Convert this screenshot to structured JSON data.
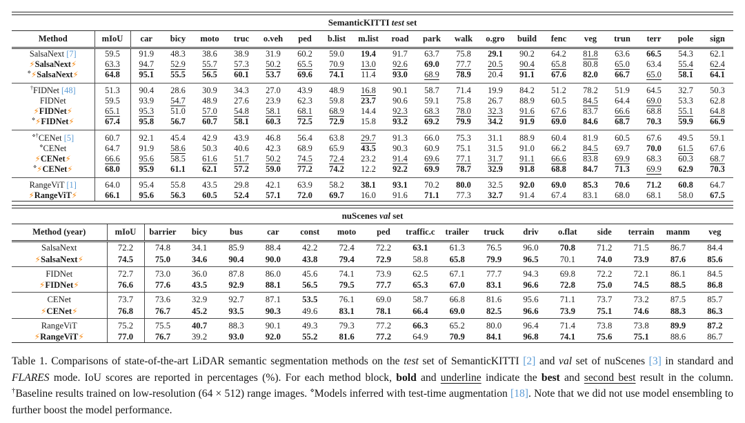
{
  "colors": {
    "citation": "#5b9bd5",
    "lightning": "#f5870f",
    "rule": "#2b2b2b"
  },
  "tables": [
    {
      "id": "semantickitti-test",
      "title": [
        {
          "t": "SemanticKITTI ",
          "s": "b"
        },
        {
          "t": "test",
          "s": "bi"
        },
        {
          "t": " set",
          "s": "b"
        }
      ],
      "columns": [
        "Method",
        "mIoU",
        "car",
        "bicy",
        "moto",
        "truc",
        "o.veh",
        "ped",
        "b.list",
        "m.list",
        "road",
        "park",
        "walk",
        "o.gro",
        "build",
        "fenc",
        "veg",
        "trun",
        "terr",
        "pole",
        "sign"
      ],
      "method_col_width": 120,
      "miou_col_width": 52,
      "blocks": [
        {
          "rows": [
            {
              "m": {
                "pre": "",
                "name": "SalsaNext",
                "cite": "[7]",
                "fl": false
              },
              "v": [
                "59.5",
                "91.9",
                "48.3",
                "38.6",
                "38.9",
                "31.9",
                "60.2",
                "59.0",
                "19.4*",
                "91.7",
                "63.7",
                "75.8",
                "29.1*",
                "90.2",
                "64.2",
                "81.8_",
                "63.6",
                "66.5*",
                "54.3",
                "62.1"
              ]
            },
            {
              "m": {
                "pre": "",
                "name": "SalsaNext",
                "cite": "",
                "fl": true
              },
              "v": [
                "63.3_",
                "94.7_",
                "52.9_",
                "55.7_",
                "57.3_",
                "50.2_",
                "65.5_",
                "70.9_",
                "13.0_",
                "92.6_",
                "69.0*",
                "77.7_",
                "20.5_",
                "90.4_",
                "65.8_",
                "80.8",
                "65.0_",
                "63.4",
                "55.4_",
                "62.4_"
              ]
            },
            {
              "m": {
                "pre": "⋄",
                "name": "SalsaNext",
                "cite": "",
                "fl": true
              },
              "v": [
                "64.8*",
                "95.1*",
                "55.5*",
                "56.5*",
                "60.1*",
                "53.7*",
                "69.6*",
                "74.1*",
                "11.4",
                "93.0*",
                "68.9_",
                "78.9*",
                "20.4",
                "91.1*",
                "67.6*",
                "82.0*",
                "66.7*",
                "65.0_",
                "58.1*",
                "64.1*"
              ]
            }
          ]
        },
        {
          "rows": [
            {
              "m": {
                "pre": "†",
                "name": "FIDNet",
                "cite": "[48]",
                "fl": false
              },
              "v": [
                "51.3",
                "90.4",
                "28.6",
                "30.9",
                "34.3",
                "27.0",
                "43.9",
                "48.9",
                "16.8_",
                "90.1",
                "58.7",
                "71.4",
                "19.9",
                "84.2",
                "51.2",
                "78.2",
                "51.9",
                "64.5",
                "32.7",
                "50.3"
              ]
            },
            {
              "m": {
                "pre": "",
                "name": "FIDNet",
                "cite": "",
                "fl": false
              },
              "v": [
                "59.5",
                "93.9",
                "54.7_",
                "48.9",
                "27.6",
                "23.9",
                "62.3",
                "59.8",
                "23.7*",
                "90.6",
                "59.1",
                "75.8",
                "26.7",
                "88.9",
                "60.5",
                "84.5_",
                "64.4",
                "69.0_",
                "53.3",
                "62.8"
              ]
            },
            {
              "m": {
                "pre": "",
                "name": "FIDNet",
                "cite": "",
                "fl": true
              },
              "v": [
                "65.1_",
                "95.3_",
                "51.0",
                "57.0_",
                "54.8_",
                "58.1_",
                "68.1_",
                "68.9_",
                "14.4",
                "92.3_",
                "68.3_",
                "78.0_",
                "32.3_",
                "91.6_",
                "67.6_",
                "83.7",
                "66.6_",
                "68.8",
                "55.1_",
                "64.8_"
              ]
            },
            {
              "m": {
                "pre": "⋄",
                "name": "FIDNet",
                "cite": "",
                "fl": true
              },
              "v": [
                "67.4*",
                "95.8*",
                "56.7*",
                "60.7*",
                "58.1*",
                "60.3*",
                "72.5*",
                "72.9*",
                "15.8",
                "93.2*",
                "69.2*",
                "79.9*",
                "34.2*",
                "91.9*",
                "69.0*",
                "84.6*",
                "68.7*",
                "70.3*",
                "59.9*",
                "66.9*"
              ]
            }
          ]
        },
        {
          "rows": [
            {
              "m": {
                "pre": "⋄†",
                "name": "CENet",
                "cite": "[5]",
                "fl": false
              },
              "v": [
                "60.7",
                "92.1",
                "45.4",
                "42.9",
                "43.9",
                "46.8",
                "56.4",
                "63.8",
                "29.7_",
                "91.3",
                "66.0",
                "75.3",
                "31.1",
                "88.9",
                "60.4",
                "81.9",
                "60.5",
                "67.6",
                "49.5",
                "59.1"
              ]
            },
            {
              "m": {
                "pre": "⋄",
                "name": "CENet",
                "cite": "",
                "fl": false
              },
              "v": [
                "64.7",
                "91.9",
                "58.6_",
                "50.3",
                "40.6",
                "42.3",
                "68.9",
                "65.9",
                "43.5*",
                "90.3",
                "60.9",
                "75.1",
                "31.5",
                "91.0",
                "66.2",
                "84.5_",
                "69.7",
                "70.0*",
                "61.5_",
                "67.6"
              ]
            },
            {
              "m": {
                "pre": "",
                "name": "CENet",
                "cite": "",
                "fl": true
              },
              "v": [
                "66.6_",
                "95.6_",
                "58.5",
                "61.6_",
                "51.7_",
                "50.2_",
                "74.5_",
                "72.4_",
                "23.2",
                "91.4_",
                "69.6_",
                "77.1_",
                "31.7_",
                "91.1_",
                "66.6_",
                "83.8",
                "69.9_",
                "68.3",
                "60.3",
                "68.7_"
              ]
            },
            {
              "m": {
                "pre": "⋄",
                "name": "CENet",
                "cite": "",
                "fl": true
              },
              "v": [
                "68.0*",
                "95.9*",
                "61.1*",
                "62.1*",
                "57.2*",
                "59.0*",
                "77.2*",
                "74.2*",
                "12.2",
                "92.2*",
                "69.9*",
                "78.7*",
                "32.9*",
                "91.8*",
                "68.8*",
                "84.7*",
                "71.3*",
                "69.9_",
                "62.9*",
                "70.3*"
              ]
            }
          ]
        },
        {
          "rows": [
            {
              "m": {
                "pre": "",
                "name": "RangeViT",
                "cite": "[1]",
                "fl": false
              },
              "v": [
                "64.0",
                "95.4",
                "55.8",
                "43.5",
                "29.8",
                "42.1",
                "63.9",
                "58.2",
                "38.1*",
                "93.1*",
                "70.2",
                "80.0*",
                "32.5",
                "92.0*",
                "69.0*",
                "85.3*",
                "70.6*",
                "71.2*",
                "60.8*",
                "64.7"
              ]
            },
            {
              "m": {
                "pre": "",
                "name": "RangeViT",
                "cite": "",
                "fl": true
              },
              "v": [
                "66.1*",
                "95.6*",
                "56.3*",
                "60.5*",
                "52.4*",
                "57.1*",
                "72.0*",
                "69.7*",
                "16.0",
                "91.6",
                "71.1*",
                "77.3",
                "32.7*",
                "91.4",
                "67.4",
                "83.1",
                "68.0",
                "68.1",
                "58.0",
                "67.5*"
              ]
            }
          ]
        }
      ]
    },
    {
      "id": "nuscenes-val",
      "title": [
        {
          "t": "nuScenes ",
          "s": "b"
        },
        {
          "t": "val",
          "s": "bi"
        },
        {
          "t": " set",
          "s": "b"
        }
      ],
      "columns": [
        "Method (year)",
        "mIoU",
        "barrier",
        "bicy",
        "bus",
        "car",
        "const",
        "moto",
        "ped",
        "traffic.c",
        "trailer",
        "truck",
        "driv",
        "o.flat",
        "side",
        "terrain",
        "manm",
        "veg"
      ],
      "method_col_width": 138,
      "miou_col_width": 54,
      "blocks": [
        {
          "rows": [
            {
              "m": {
                "pre": "",
                "name": "SalsaNext",
                "cite": "",
                "fl": false
              },
              "v": [
                "72.2",
                "74.8",
                "34.1",
                "85.9",
                "88.4",
                "42.2",
                "72.4",
                "72.2",
                "63.1*",
                "61.3",
                "76.5",
                "96.0",
                "70.8*",
                "71.2",
                "71.5",
                "86.7",
                "84.4"
              ]
            },
            {
              "m": {
                "pre": "",
                "name": "SalsaNext",
                "cite": "",
                "fl": true
              },
              "v": [
                "74.5*",
                "75.0*",
                "34.6*",
                "90.4*",
                "90.0*",
                "43.8*",
                "79.4*",
                "72.9*",
                "58.8",
                "65.8*",
                "79.9*",
                "96.5*",
                "70.1",
                "74.0*",
                "73.9*",
                "87.6*",
                "85.6*"
              ]
            }
          ]
        },
        {
          "rows": [
            {
              "m": {
                "pre": "",
                "name": "FIDNet",
                "cite": "",
                "fl": false
              },
              "v": [
                "72.7",
                "73.0",
                "36.0",
                "87.8",
                "86.0",
                "45.6",
                "74.1",
                "73.9",
                "62.5",
                "67.1",
                "77.7",
                "94.3",
                "69.8",
                "72.2",
                "72.1",
                "86.1",
                "84.5"
              ]
            },
            {
              "m": {
                "pre": "",
                "name": "FIDNet",
                "cite": "",
                "fl": true
              },
              "v": [
                "76.6*",
                "77.6*",
                "43.5*",
                "92.9*",
                "88.1*",
                "56.5*",
                "79.5*",
                "77.7*",
                "65.3*",
                "67.0*",
                "83.1*",
                "96.6*",
                "72.8*",
                "75.0*",
                "74.5*",
                "88.5*",
                "86.8*"
              ]
            }
          ]
        },
        {
          "rows": [
            {
              "m": {
                "pre": "",
                "name": "CENet",
                "cite": "",
                "fl": false
              },
              "v": [
                "73.7",
                "73.6",
                "32.9",
                "92.7",
                "87.1",
                "53.5*",
                "76.1",
                "69.0",
                "58.7",
                "66.8",
                "81.6",
                "95.6",
                "71.1",
                "73.7",
                "73.2",
                "87.5",
                "85.7"
              ]
            },
            {
              "m": {
                "pre": "",
                "name": "CENet",
                "cite": "",
                "fl": true
              },
              "v": [
                "76.8*",
                "76.7*",
                "45.2*",
                "93.5*",
                "90.3*",
                "49.6",
                "83.1*",
                "78.1*",
                "66.4*",
                "69.0*",
                "82.5*",
                "96.6*",
                "73.9*",
                "75.1*",
                "74.6*",
                "88.3*",
                "86.3*"
              ]
            }
          ]
        },
        {
          "rows": [
            {
              "m": {
                "pre": "",
                "name": "RangeViT",
                "cite": "",
                "fl": false
              },
              "v": [
                "75.2",
                "75.5",
                "40.7*",
                "88.3",
                "90.1",
                "49.3",
                "79.3",
                "77.2",
                "66.3*",
                "65.2",
                "80.0",
                "96.4",
                "71.4",
                "73.8",
                "73.8",
                "89.9*",
                "87.2*"
              ]
            },
            {
              "m": {
                "pre": "",
                "name": "RangeViT",
                "cite": "",
                "fl": true
              },
              "v": [
                "77.0*",
                "76.7*",
                "39.2",
                "93.0*",
                "92.0*",
                "55.2*",
                "81.6*",
                "77.2*",
                "64.9",
                "70.9*",
                "84.1*",
                "96.8*",
                "74.1*",
                "75.6*",
                "75.1*",
                "88.6",
                "86.7"
              ]
            }
          ]
        }
      ]
    }
  ],
  "caption": [
    {
      "t": "Table 1.  Comparisons of state-of-the-art LiDAR semantic segmentation methods on the ",
      "s": "r"
    },
    {
      "t": "test",
      "s": "i"
    },
    {
      "t": " set of SemanticKITTI ",
      "s": "r"
    },
    {
      "t": "[2]",
      "s": "c"
    },
    {
      "t": " and ",
      "s": "r"
    },
    {
      "t": "val",
      "s": "i"
    },
    {
      "t": " set of nuScenes ",
      "s": "r"
    },
    {
      "t": "[3]",
      "s": "c"
    },
    {
      "t": " in standard and ",
      "s": "r"
    },
    {
      "t": "FLARES",
      "s": "i"
    },
    {
      "t": " mode.  IoU scores are reported in percentages (%).  For each method block, ",
      "s": "r"
    },
    {
      "t": "bold",
      "s": "b"
    },
    {
      "t": " and ",
      "s": "r"
    },
    {
      "t": "underline",
      "s": "u"
    },
    {
      "t": " indicate the ",
      "s": "r"
    },
    {
      "t": "best",
      "s": "b"
    },
    {
      "t": " and ",
      "s": "r"
    },
    {
      "t": "second best",
      "s": "u"
    },
    {
      "t": " result in the column. ",
      "s": "r"
    },
    {
      "t": "†",
      "s": "sup"
    },
    {
      "t": "Baseline results trained on low-resolution (64 × 512) range images. ",
      "s": "r"
    },
    {
      "t": "⋄",
      "s": "sup"
    },
    {
      "t": "Models inferred with test-time augmentation ",
      "s": "r"
    },
    {
      "t": "[18]",
      "s": "c"
    },
    {
      "t": ". Note that we did not use model ensembling to further boost the model performance.",
      "s": "r"
    }
  ]
}
